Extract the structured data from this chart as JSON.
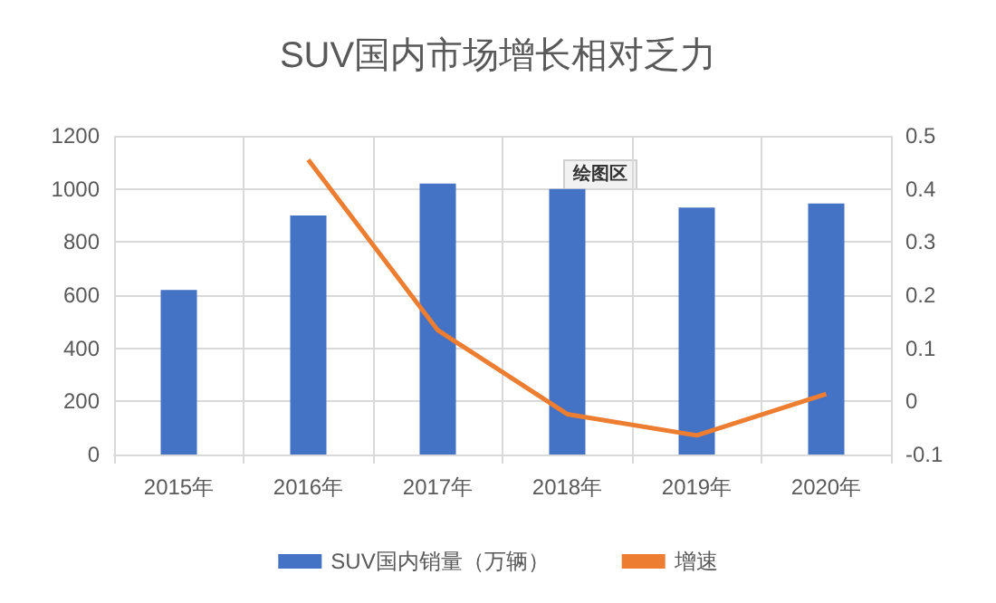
{
  "chart_data": {
    "type": "bar",
    "title": "SUV国内市场增长相对乏力",
    "categories": [
      "2015年",
      "2016年",
      "2017年",
      "2018年",
      "2019年",
      "2020年"
    ],
    "series": [
      {
        "name": "SUV国内销量（万辆）",
        "color": "#4472c4",
        "values": [
          620,
          900,
          1020,
          1000,
          930,
          945
        ]
      },
      {
        "name": "增速",
        "type": "line",
        "axis": "y2",
        "color": "#ed7d31",
        "values": [
          null,
          0.455,
          0.134,
          -0.024,
          -0.064,
          0.014
        ]
      }
    ],
    "ylim": [
      0,
      1200
    ],
    "yticks": [
      0,
      200,
      400,
      600,
      800,
      1000,
      1200
    ],
    "y2lim": [
      -0.1,
      0.5
    ],
    "y2ticks": [
      -0.1,
      0,
      0.1,
      0.2,
      0.3,
      0.4,
      0.5
    ],
    "grid": true,
    "legend": "bottom",
    "marker": "none",
    "annotations": [
      "绘图区"
    ]
  }
}
